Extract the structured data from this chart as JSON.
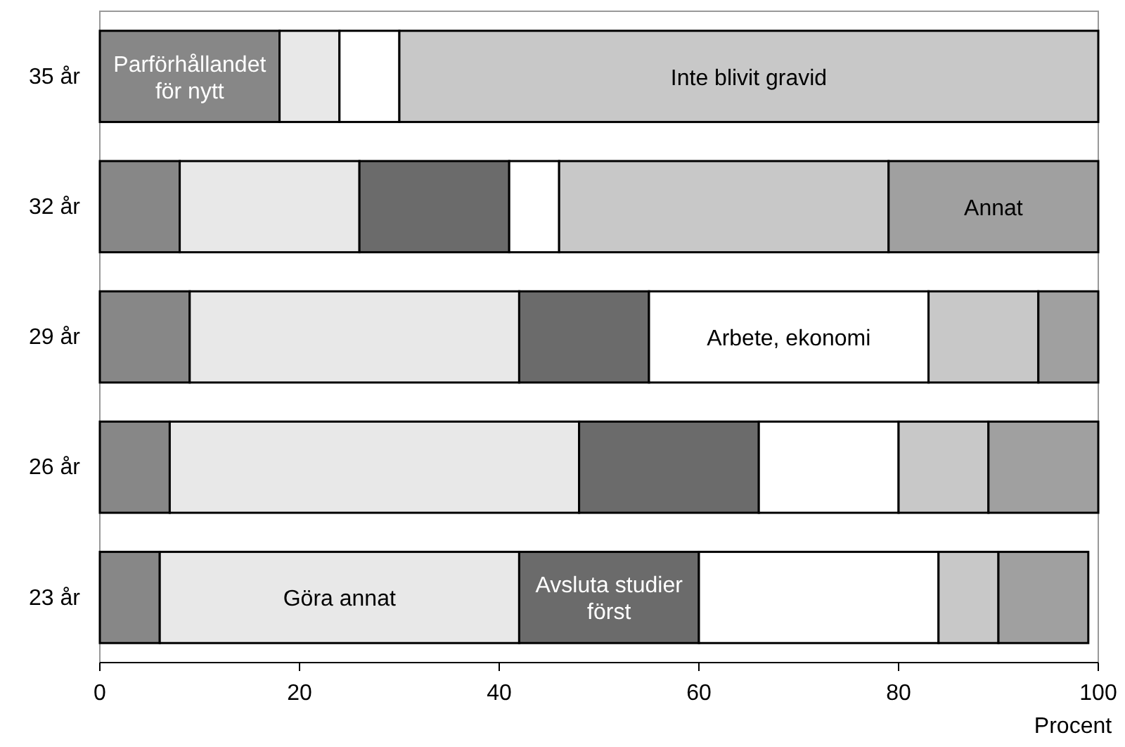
{
  "chart_data": {
    "type": "bar",
    "orientation": "horizontal",
    "stacked": true,
    "xlabel": "Procent",
    "categories": [
      "35 år",
      "32 år",
      "29 år",
      "26 år",
      "23 år"
    ],
    "series": [
      {
        "name": "Parförhållandet för nytt",
        "color": "#878787",
        "values": [
          18,
          8,
          9,
          7,
          6
        ]
      },
      {
        "name": "Göra annat",
        "color": "#e8e8e8",
        "values": [
          6,
          18,
          33,
          41,
          36
        ]
      },
      {
        "name": "Avsluta studier först",
        "color": "#6b6b6b",
        "values": [
          0,
          15,
          13,
          18,
          18
        ]
      },
      {
        "name": "Arbete, ekonomi",
        "color": "#ffffff",
        "values": [
          6,
          5,
          28,
          14,
          24
        ]
      },
      {
        "name": "Inte blivit gravid",
        "color": "#c8c8c8",
        "values": [
          70,
          33,
          11,
          9,
          6
        ]
      },
      {
        "name": "Annat",
        "color": "#a0a0a0",
        "values": [
          0,
          21,
          6,
          11,
          9
        ]
      }
    ],
    "xlim": [
      0,
      100
    ],
    "xticks": [
      0,
      20,
      40,
      60,
      80,
      100
    ],
    "grid": false,
    "legend": false
  }
}
